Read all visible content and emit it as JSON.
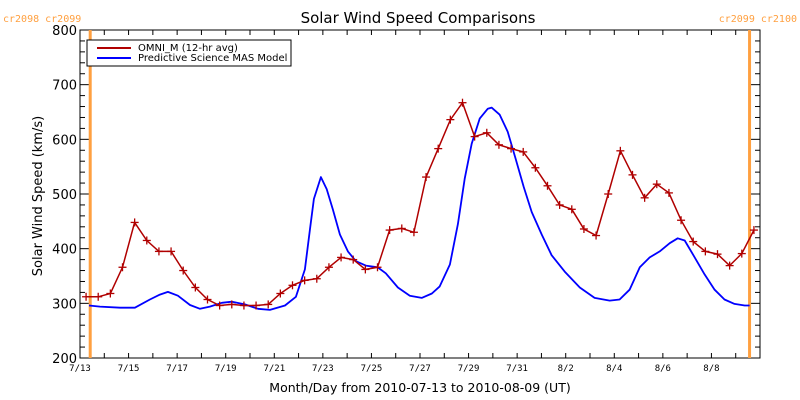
{
  "chart_data": {
    "type": "line",
    "title": "Solar Wind Speed Comparisons",
    "xlabel": "Month/Day from 2010-07-13 to 2010-08-09 (UT)",
    "ylabel": "Solar Wind Speed (km/s)",
    "ylim": [
      200,
      800
    ],
    "yticks": [
      200,
      300,
      400,
      500,
      600,
      700,
      800
    ],
    "xlim_days_from_2010-07-13": [
      0,
      28
    ],
    "xtick_labels": [
      "7/13",
      "7/15",
      "7/17",
      "7/19",
      "7/21",
      "7/23",
      "7/25",
      "7/27",
      "7/29",
      "7/31",
      "8/2",
      "8/4",
      "8/6",
      "8/8"
    ],
    "xtick_days": [
      0,
      2,
      4,
      6,
      8,
      10,
      12,
      14,
      16,
      18,
      20,
      22,
      24,
      26
    ],
    "legend_position": "top-left",
    "carrington_markers": [
      {
        "label": "cr2098 cr2099",
        "day": 0.42,
        "label_side": "left"
      },
      {
        "label": "cr2099 cr2100",
        "day": 27.57,
        "label_side": "right"
      }
    ],
    "series": [
      {
        "name": "OMNI_M (12-hr avg)",
        "color": "#b00000",
        "marker": "plus",
        "x_start_day": 0.25,
        "x_step_day": 0.5,
        "values": [
          312,
          312,
          318,
          366,
          448,
          415,
          395,
          395,
          360,
          329,
          307,
          296,
          298,
          296,
          296,
          298,
          318,
          333,
          342,
          345,
          366,
          384,
          380,
          362,
          366,
          434,
          437,
          430,
          531,
          583,
          636,
          667,
          605,
          612,
          590,
          583,
          577,
          548,
          515,
          480,
          472,
          436,
          424,
          500,
          579,
          535,
          493,
          518,
          502,
          452,
          413,
          395,
          390,
          369,
          391,
          434
        ]
      },
      {
        "name": "Predictive Science MAS Model",
        "color": "#0000ff",
        "marker": "none",
        "points": [
          [
            0.37,
            296
          ],
          [
            0.82,
            294
          ],
          [
            1.65,
            292
          ],
          [
            2.26,
            292
          ],
          [
            2.88,
            307
          ],
          [
            3.29,
            316
          ],
          [
            3.62,
            321
          ],
          [
            4.03,
            314
          ],
          [
            4.53,
            297
          ],
          [
            4.94,
            290
          ],
          [
            5.35,
            294
          ],
          [
            5.84,
            301
          ],
          [
            6.26,
            303
          ],
          [
            6.79,
            298
          ],
          [
            7.33,
            290
          ],
          [
            7.82,
            288
          ],
          [
            8.44,
            296
          ],
          [
            8.89,
            312
          ],
          [
            9.26,
            362
          ],
          [
            9.47,
            436
          ],
          [
            9.63,
            491
          ],
          [
            9.92,
            531
          ],
          [
            10.16,
            509
          ],
          [
            10.41,
            472
          ],
          [
            10.7,
            426
          ],
          [
            11.03,
            395
          ],
          [
            11.36,
            377
          ],
          [
            11.77,
            369
          ],
          [
            12.26,
            366
          ],
          [
            12.59,
            355
          ],
          [
            13.09,
            329
          ],
          [
            13.58,
            314
          ],
          [
            14.07,
            310
          ],
          [
            14.49,
            318
          ],
          [
            14.81,
            331
          ],
          [
            15.23,
            371
          ],
          [
            15.56,
            445
          ],
          [
            15.84,
            528
          ],
          [
            16.13,
            592
          ],
          [
            16.46,
            638
          ],
          [
            16.79,
            656
          ],
          [
            16.95,
            658
          ],
          [
            17.28,
            645
          ],
          [
            17.61,
            614
          ],
          [
            17.94,
            564
          ],
          [
            18.27,
            513
          ],
          [
            18.6,
            467
          ],
          [
            19.01,
            426
          ],
          [
            19.42,
            388
          ],
          [
            19.96,
            358
          ],
          [
            20.58,
            329
          ],
          [
            21.19,
            310
          ],
          [
            21.81,
            305
          ],
          [
            22.22,
            307
          ],
          [
            22.63,
            325
          ],
          [
            23.05,
            366
          ],
          [
            23.46,
            384
          ],
          [
            23.87,
            395
          ],
          [
            24.28,
            410
          ],
          [
            24.61,
            419
          ],
          [
            24.9,
            415
          ],
          [
            25.31,
            384
          ],
          [
            25.72,
            353
          ],
          [
            26.13,
            325
          ],
          [
            26.54,
            307
          ],
          [
            26.95,
            299
          ],
          [
            27.37,
            296
          ],
          [
            27.57,
            296
          ]
        ]
      }
    ],
    "marker_color": "#ffa040"
  }
}
